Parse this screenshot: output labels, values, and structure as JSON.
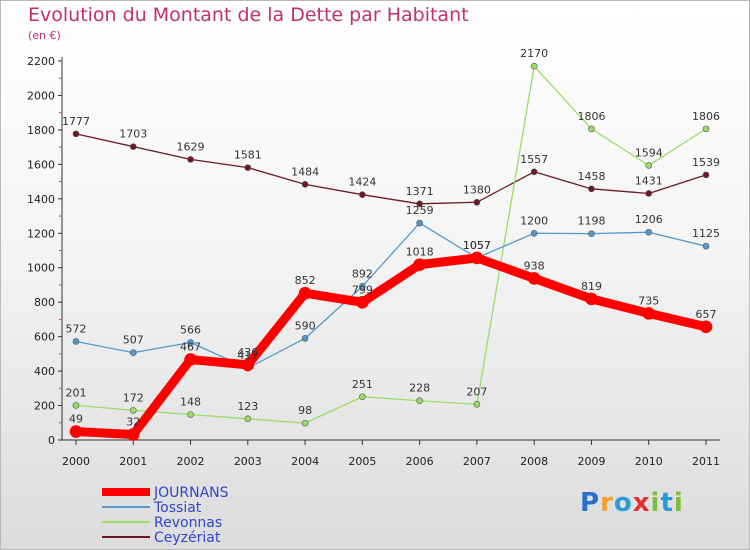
{
  "chart_data": {
    "type": "line",
    "title": "Evolution du Montant de la Dette par Habitant",
    "subtitle": "(en €)",
    "categories": [
      "2000",
      "2001",
      "2002",
      "2003",
      "2004",
      "2005",
      "2006",
      "2007",
      "2008",
      "2009",
      "2010",
      "2011"
    ],
    "ylim": [
      0,
      2200
    ],
    "yticks": [
      0,
      200,
      400,
      600,
      800,
      1000,
      1200,
      1400,
      1600,
      1800,
      2000,
      2200
    ],
    "grid": false,
    "legend_position": "bottom-left",
    "series": [
      {
        "name": "Ceyzériat",
        "color": "#6b1a24",
        "values": [
          1777,
          1703,
          1629,
          1581,
          1484,
          1424,
          1371,
          1380,
          1557,
          1458,
          1431,
          1539
        ]
      },
      {
        "name": "Revonnas",
        "color": "#99dd66",
        "values": [
          201,
          172,
          148,
          123,
          98,
          251,
          228,
          207,
          2170,
          1806,
          1594,
          1806
        ]
      },
      {
        "name": "Tossiat",
        "color": "#5599cc",
        "values": [
          572,
          507,
          566,
          417,
          590,
          892,
          1259,
          1057,
          1200,
          1198,
          1206,
          1125
        ]
      },
      {
        "name": "JOURNANS",
        "color": "#ff0000",
        "values": [
          49,
          32,
          467,
          436,
          852,
          799,
          1018,
          1057,
          938,
          819,
          735,
          657
        ]
      }
    ]
  },
  "logo": {
    "letters": [
      "P",
      "r",
      "o",
      "x",
      "i",
      "t",
      "i"
    ],
    "colors": [
      "#2a6fc9",
      "#f0a030",
      "#2a9bd8",
      "#e03030",
      "#7bbf3a",
      "#2a9bd8",
      "#7bbf3a"
    ]
  }
}
